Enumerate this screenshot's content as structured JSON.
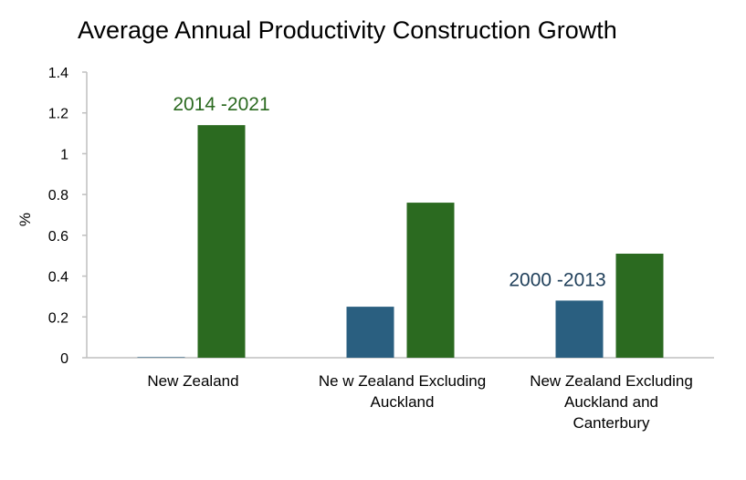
{
  "chart_data": {
    "type": "bar",
    "title": "Average Annual Productivity Construction Growth",
    "xlabel": "",
    "ylabel": "%",
    "ylim": [
      0,
      1.4
    ],
    "yticks": [
      0,
      0.2,
      0.4,
      0.6,
      0.8,
      1,
      1.2,
      1.4
    ],
    "ytick_labels": [
      "0",
      "0.2",
      "0.4",
      "0.6",
      "0.8",
      "1",
      "1.2",
      "1.4"
    ],
    "grid": false,
    "categories": [
      [
        "New Zealand"
      ],
      [
        "Ne w Zealand Excluding",
        "Auckland"
      ],
      [
        "New Zealand Excluding",
        "Auckland and",
        "Canterbury"
      ]
    ],
    "series": [
      {
        "name": "2000 -2013",
        "color": "#2a5f80",
        "values": [
          0,
          0.25,
          0.28
        ]
      },
      {
        "name": "2014 -2021",
        "color": "#2b6a20",
        "values": [
          1.14,
          0.76,
          0.51
        ]
      }
    ],
    "annotations": [
      {
        "text": "2014 -2021",
        "color": "#2b6a20",
        "series": 1,
        "category": 0
      },
      {
        "text": "2000 -2013",
        "color": "#1f3f5a",
        "series": 0,
        "category": 2
      }
    ],
    "axis_color": "#bfbfbf"
  }
}
